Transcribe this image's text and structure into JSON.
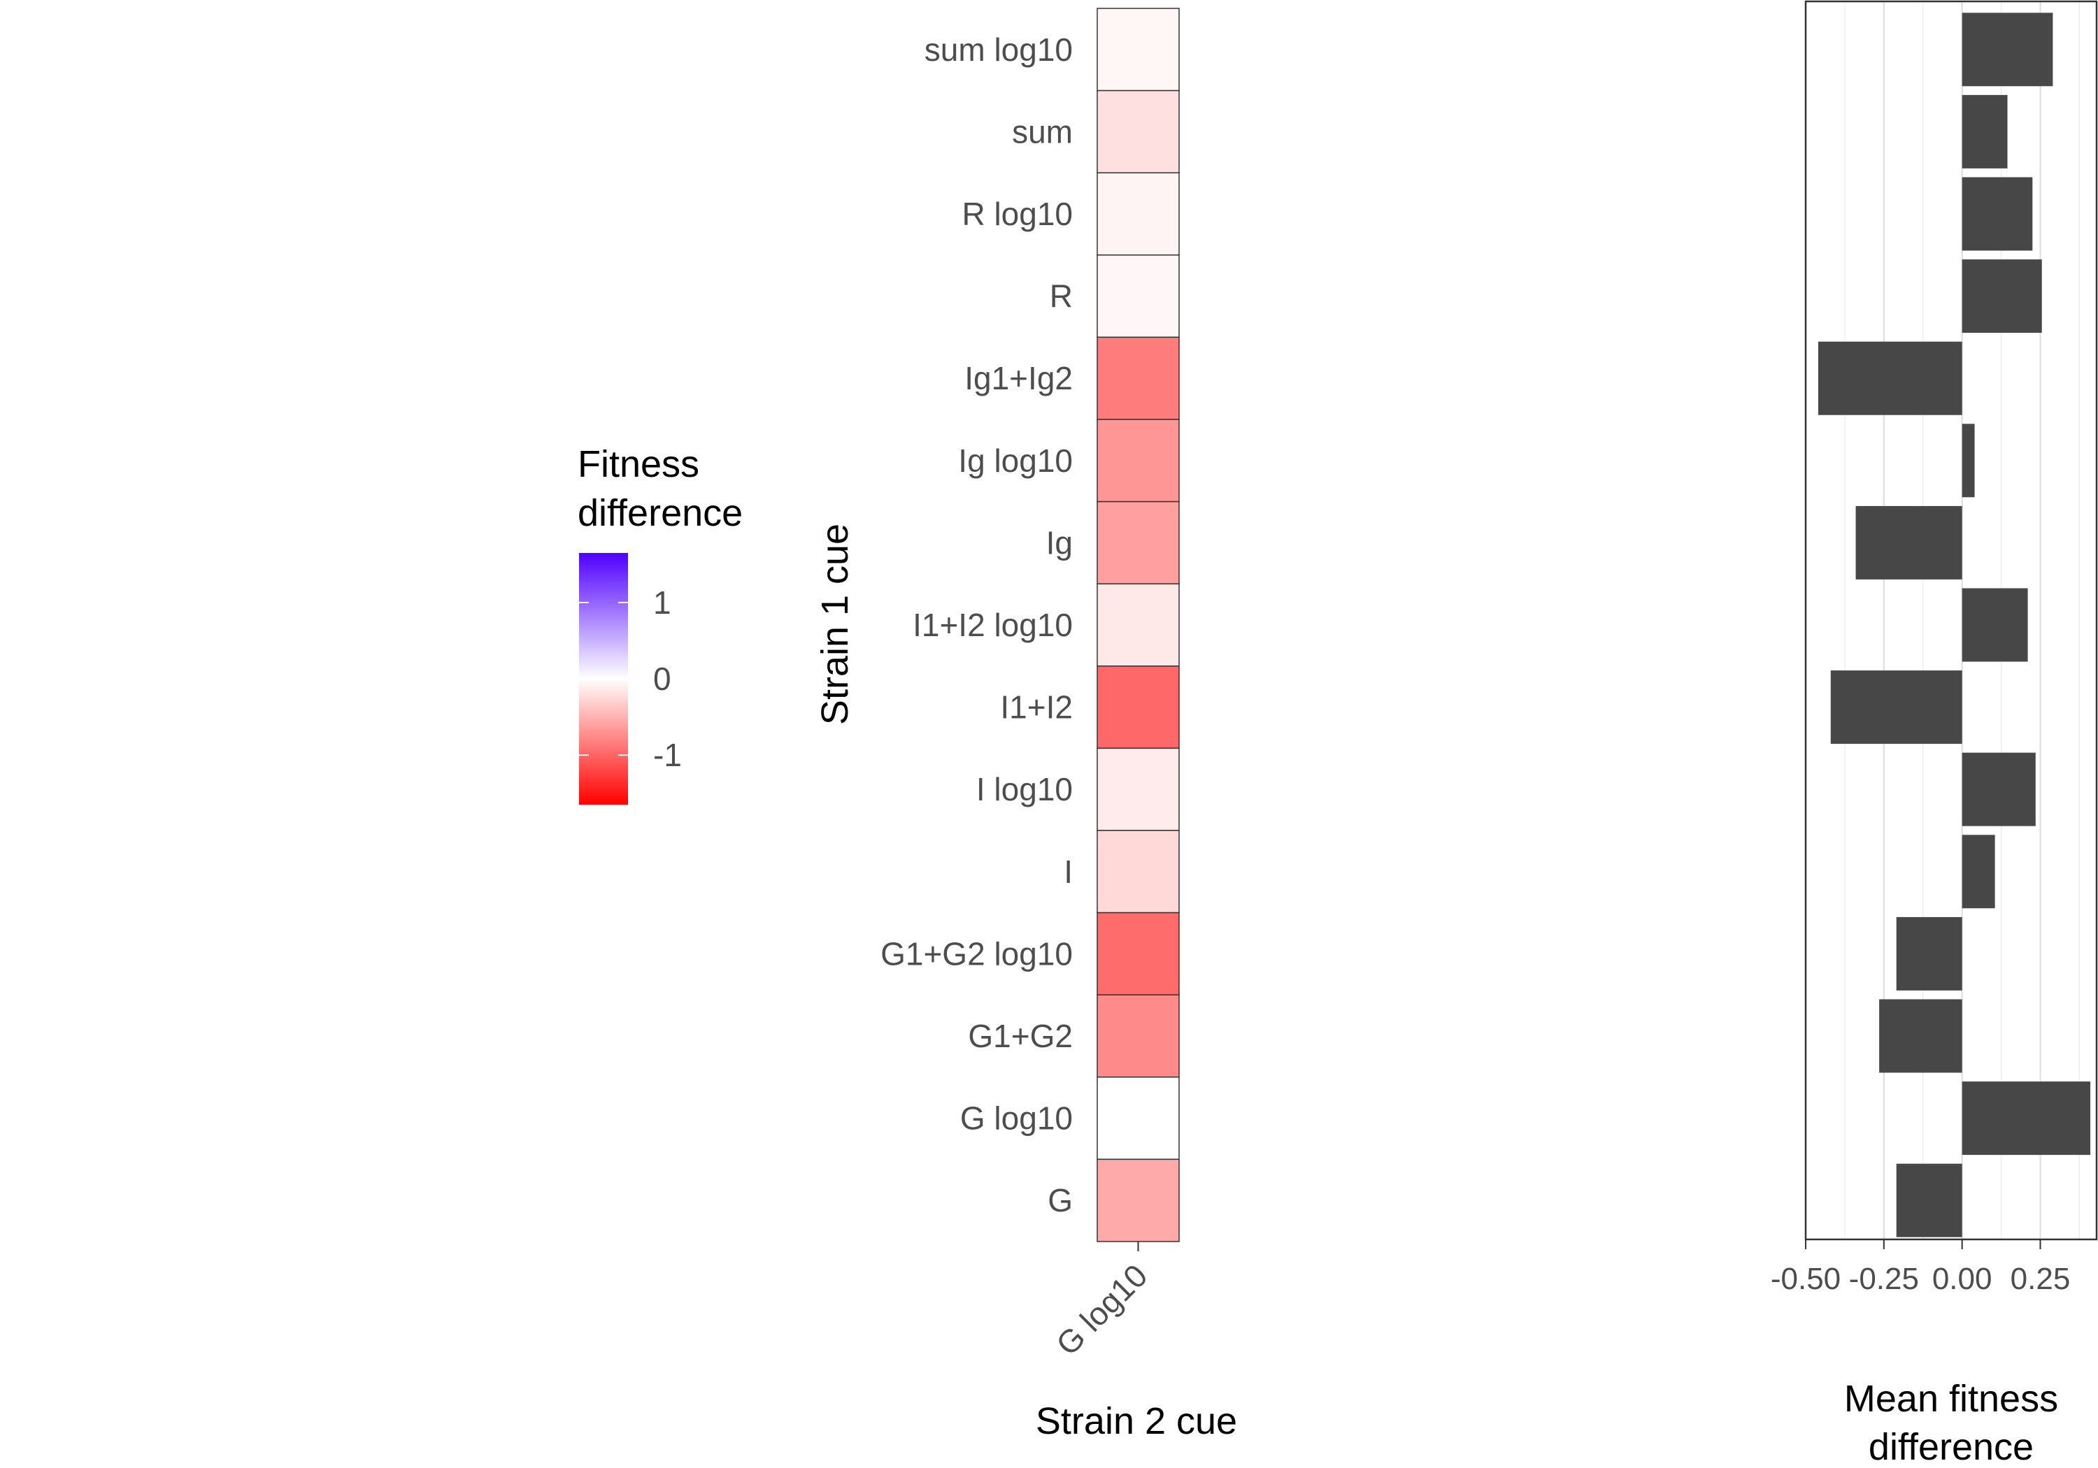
{
  "chart_data": [
    {
      "type": "heatmap",
      "title": "",
      "xlabel": "Strain 2 cue",
      "ylabel": "Strain 1 cue",
      "x_categories": [
        "G log10"
      ],
      "y_categories": [
        "sum log10",
        "sum",
        "R log10",
        "R",
        "Ig1+Ig2",
        "Ig log10",
        "Ig",
        "I1+I2 log10",
        "I1+I2",
        "I log10",
        "I",
        "G1+G2 log10",
        "G1+G2",
        "G log10",
        "G"
      ],
      "values": [
        -0.06,
        -0.2,
        -0.07,
        -0.05,
        -0.85,
        -0.68,
        -0.62,
        -0.15,
        -0.98,
        -0.13,
        -0.25,
        -0.95,
        -0.76,
        0.0,
        -0.55
      ],
      "legend": {
        "title_lines": [
          "Fitness",
          "difference"
        ],
        "ticks": [
          "1",
          "0",
          "-1"
        ],
        "tick_values": [
          1,
          0,
          -1
        ],
        "range": [
          -1.65,
          1.65
        ],
        "colors": {
          "low": "#ff0000",
          "mid": "#ffffff",
          "high": "#4f00ff"
        },
        "position": "left"
      }
    },
    {
      "type": "bar",
      "orientation": "horizontal",
      "title": "",
      "xlabel_lines": [
        "Mean fitness",
        "difference"
      ],
      "ylabel": "",
      "categories": [
        "sum log10",
        "sum",
        "R log10",
        "R",
        "Ig1+Ig2",
        "Ig log10",
        "Ig",
        "I1+I2 log10",
        "I1+I2",
        "I log10",
        "I",
        "G1+G2 log10",
        "G1+G2",
        "G log10",
        "G"
      ],
      "values": [
        0.29,
        0.145,
        0.225,
        0.255,
        -0.46,
        0.04,
        -0.34,
        0.21,
        -0.42,
        0.235,
        0.105,
        -0.21,
        -0.265,
        0.41,
        -0.21
      ],
      "xlim": [
        -0.5,
        0.43
      ],
      "xticks": [
        "-0.50",
        "-0.25",
        "0.00",
        "0.25"
      ],
      "xtick_values": [
        -0.5,
        -0.25,
        0,
        0.25
      ],
      "bar_color": "#474747",
      "grid": true
    }
  ]
}
